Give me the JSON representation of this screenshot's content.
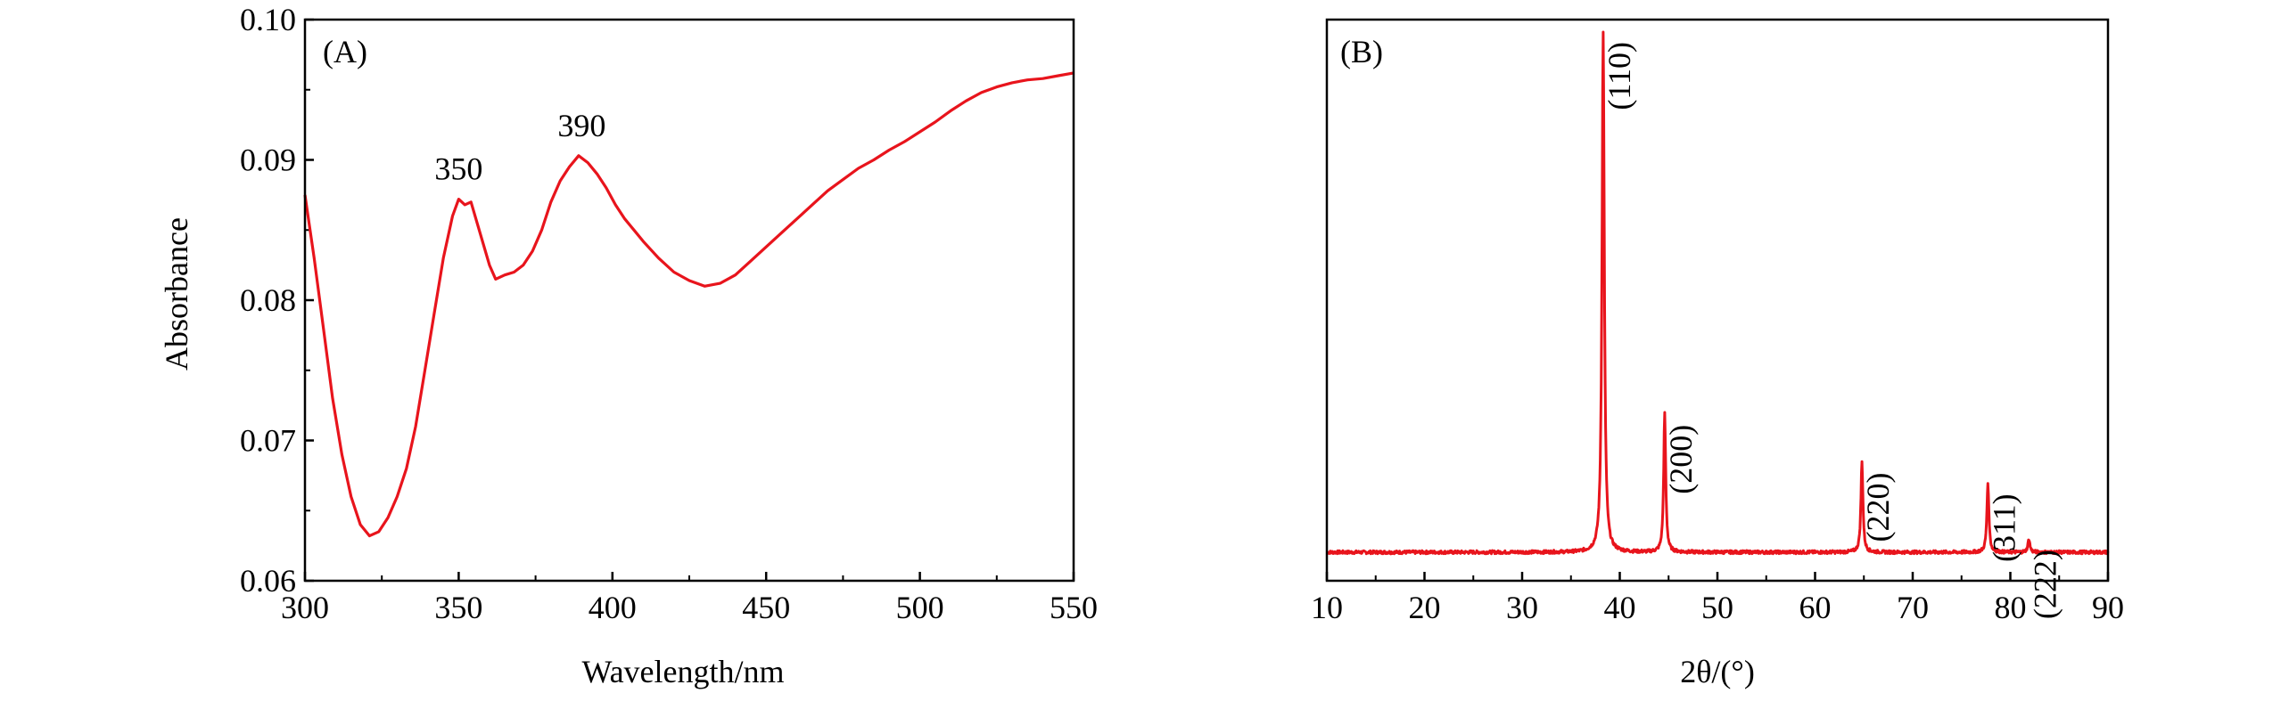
{
  "chart_data": [
    {
      "type": "line",
      "panel_label": "(A)",
      "xlabel": "Wavelength/nm",
      "ylabel": "Absorbance",
      "xlim": [
        300,
        550
      ],
      "ylim": [
        0.06,
        0.1
      ],
      "xticks": [
        300,
        350,
        400,
        450,
        500,
        550
      ],
      "yticks": [
        0.06,
        0.07,
        0.08,
        0.09,
        0.1
      ],
      "xtick_labels": [
        "300",
        "350",
        "400",
        "450",
        "500",
        "550"
      ],
      "ytick_labels": [
        "0.06",
        "0.07",
        "0.08",
        "0.09",
        "0.10"
      ],
      "grid": false,
      "color": "#e8141c",
      "series": [
        {
          "x": [
            300,
            303,
            306,
            309,
            312,
            315,
            318,
            321,
            324,
            327,
            330,
            333,
            336,
            339,
            342,
            345,
            348,
            350,
            352,
            354,
            356,
            358,
            360,
            362,
            365,
            368,
            371,
            374,
            377,
            380,
            383,
            386,
            389,
            392,
            395,
            398,
            401,
            404,
            407,
            410,
            415,
            420,
            425,
            430,
            435,
            440,
            445,
            450,
            455,
            460,
            465,
            470,
            475,
            480,
            485,
            490,
            495,
            500,
            505,
            510,
            515,
            520,
            525,
            530,
            535,
            540,
            545,
            550
          ],
          "y": [
            0.0875,
            0.083,
            0.078,
            0.073,
            0.069,
            0.066,
            0.064,
            0.0632,
            0.0635,
            0.0645,
            0.066,
            0.068,
            0.071,
            0.075,
            0.079,
            0.083,
            0.086,
            0.0872,
            0.0868,
            0.087,
            0.0855,
            0.084,
            0.0825,
            0.0815,
            0.0818,
            0.082,
            0.0825,
            0.0835,
            0.085,
            0.087,
            0.0885,
            0.0895,
            0.0903,
            0.0898,
            0.089,
            0.088,
            0.0868,
            0.0858,
            0.085,
            0.0842,
            0.083,
            0.082,
            0.0814,
            0.081,
            0.0812,
            0.0818,
            0.0828,
            0.0838,
            0.0848,
            0.0858,
            0.0868,
            0.0878,
            0.0886,
            0.0894,
            0.09,
            0.0907,
            0.0913,
            0.092,
            0.0927,
            0.0935,
            0.0942,
            0.0948,
            0.0952,
            0.0955,
            0.0957,
            0.0958,
            0.096,
            0.0962
          ]
        }
      ],
      "annotations": [
        {
          "text": "350",
          "x": 350,
          "y": 0.0872
        },
        {
          "text": "390",
          "x": 390,
          "y": 0.0903
        }
      ]
    },
    {
      "type": "line",
      "panel_label": "(B)",
      "xlabel": "2θ/(°)",
      "ylabel": "",
      "xlim": [
        10,
        90
      ],
      "ylim": [
        0,
        100
      ],
      "xticks": [
        10,
        20,
        30,
        40,
        50,
        60,
        70,
        80,
        90
      ],
      "xtick_labels": [
        "10",
        "20",
        "30",
        "40",
        "50",
        "60",
        "70",
        "80",
        "90"
      ],
      "yticks": [],
      "grid": false,
      "color": "#e8141c",
      "baseline": 2,
      "peaks": [
        {
          "label": "(110)",
          "x": 38.3,
          "height": 100,
          "width": 0.28
        },
        {
          "label": "(200)",
          "x": 44.6,
          "height": 28,
          "width": 0.25
        },
        {
          "label": "(220)",
          "x": 64.8,
          "height": 19,
          "width": 0.25
        },
        {
          "label": "(311)",
          "x": 77.7,
          "height": 15,
          "width": 0.25
        },
        {
          "label": "(222)",
          "x": 81.9,
          "height": 4.5,
          "width": 0.25
        }
      ]
    }
  ]
}
